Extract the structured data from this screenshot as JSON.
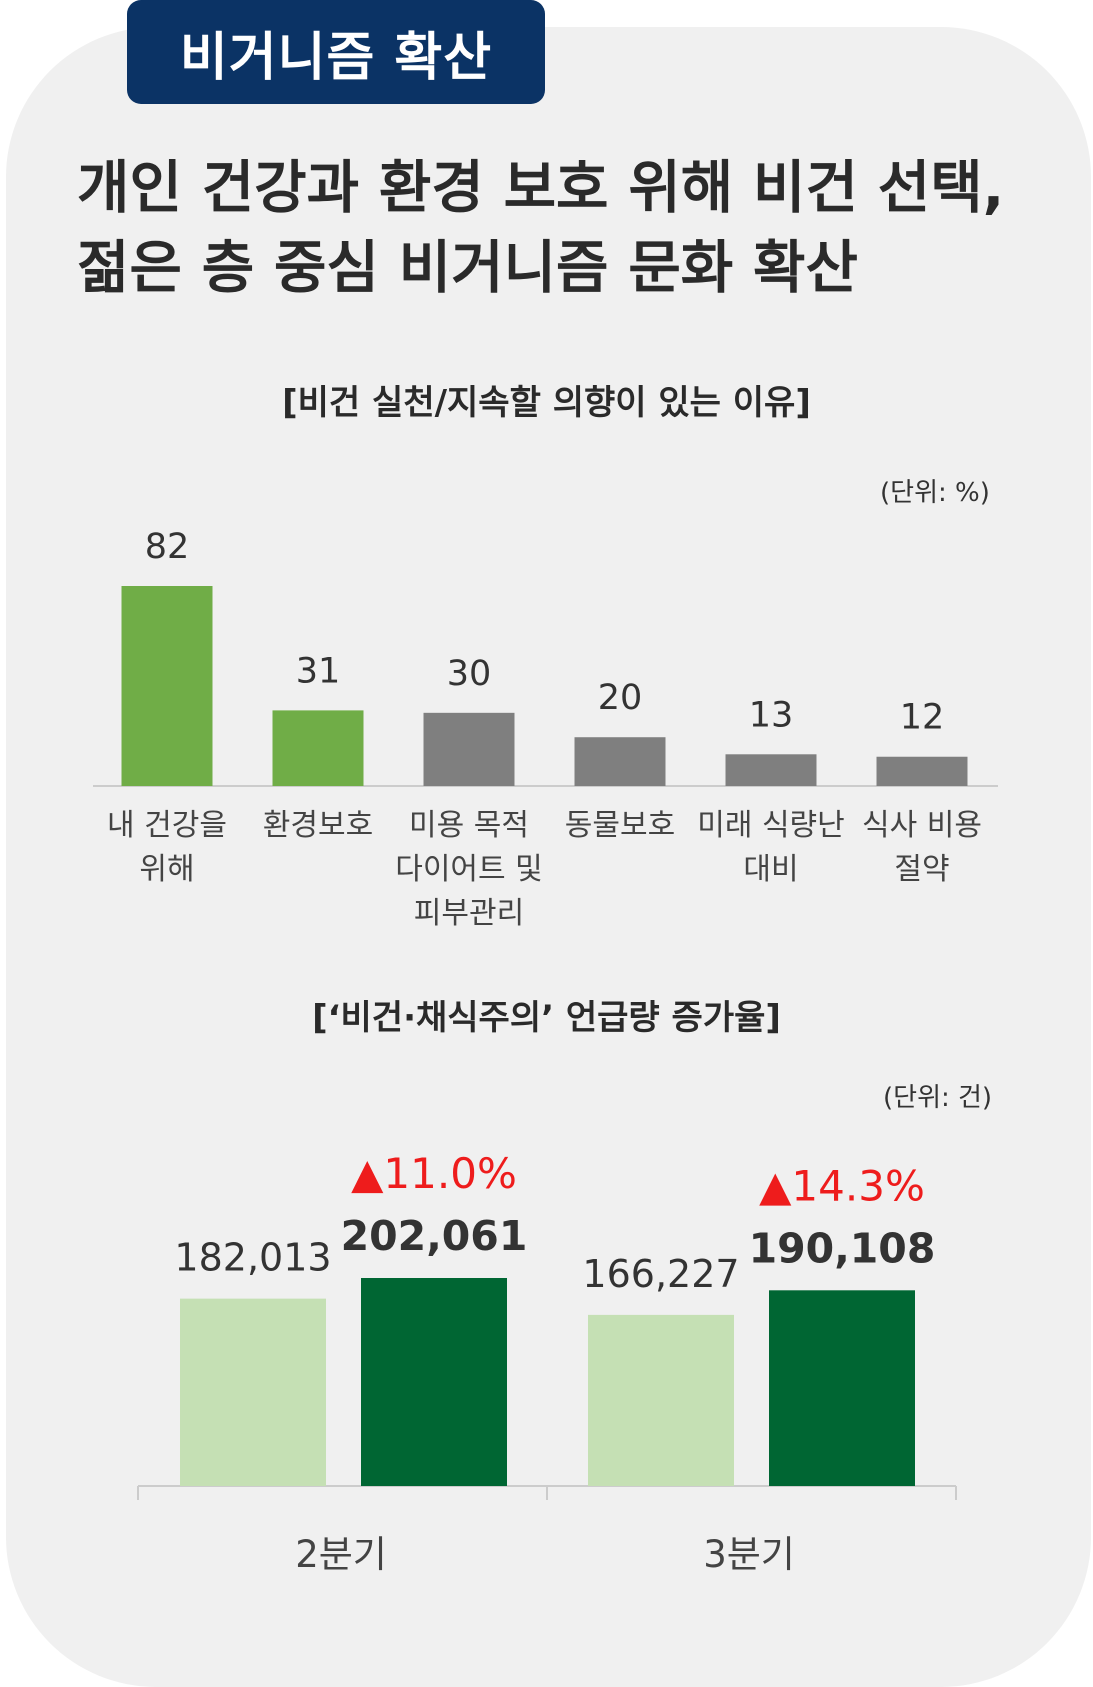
{
  "tag": "비거니즘 확산",
  "headline": [
    "개인 건강과 환경 보호 위해 비건 선택,",
    "젊은 층 중심 비거니즘 문화 확산"
  ],
  "colors": {
    "tag_bg": "#0b3365",
    "green": "#70ad47",
    "gray": "#7f7f7f",
    "light_green": "#c5e0b4",
    "dark_green": "#006633",
    "increase": "#ee1c1c"
  },
  "chart_data": [
    {
      "type": "bar",
      "title": "[비건 실천/지속할 의향이 있는 이유]",
      "unit": "(단위: %)",
      "categories": [
        [
          "내 건강을",
          "위해"
        ],
        [
          "환경보호"
        ],
        [
          "미용 목적",
          "다이어트 및",
          "피부관리"
        ],
        [
          "동물보호"
        ],
        [
          "미래 식량난",
          "대비"
        ],
        [
          "식사 비용",
          "절약"
        ]
      ],
      "values": [
        82,
        31,
        30,
        20,
        13,
        12
      ],
      "bar_colors": [
        "green",
        "green",
        "gray",
        "gray",
        "gray",
        "gray"
      ],
      "grid": false
    },
    {
      "type": "bar",
      "title": "[‘비건·채식주의’ 언급량 증가율]",
      "unit": "(단위: 건)",
      "categories": [
        "2분기",
        "3분기"
      ],
      "series": [
        {
          "values": [
            182013,
            166227
          ],
          "labels": [
            "182,013",
            "166,227"
          ]
        },
        {
          "values": [
            202061,
            190108
          ],
          "labels": [
            "202,061",
            "190,108"
          ]
        }
      ],
      "increase_labels": [
        "▲11.0%",
        "▲14.3%"
      ],
      "grid": false
    }
  ]
}
